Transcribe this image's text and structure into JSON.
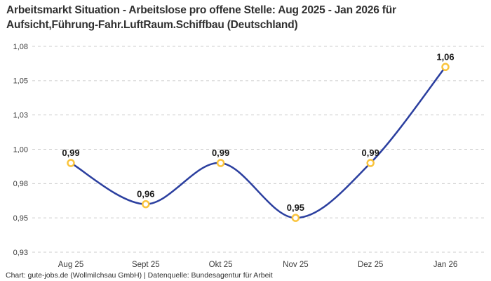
{
  "title": {
    "line1": "Arbeitsmarkt Situation - Arbeitslose pro offene Stelle: Aug 2025 - Jan 2026 für",
    "line2": "Aufsicht,Führung-Fahr.LuftRaum.Schiffbau (Deutschland)"
  },
  "footer": "Chart: gute-jobs.de (Wollmilchsau GmbH) | Datenquelle: Bundesagentur für Arbeit",
  "chart_data": {
    "type": "line",
    "title": "Arbeitsmarkt Situation - Arbeitslose pro offene Stelle: Aug 2025 - Jan 2026 für Aufsicht,Führung-Fahr.LuftRaum.Schiffbau (Deutschland)",
    "categories": [
      "Aug 25",
      "Sept 25",
      "Okt 25",
      "Nov 25",
      "Dez 25",
      "Jan 26"
    ],
    "values": [
      0.99,
      0.96,
      0.99,
      0.95,
      0.99,
      1.06
    ],
    "value_labels": [
      "0,99",
      "0,96",
      "0,99",
      "0,95",
      "0,99",
      "1,06"
    ],
    "xlabel": "",
    "ylabel": "",
    "ylim": [
      0.93,
      1.08
    ],
    "yticks_top_to_bottom": [
      "1,08",
      "1,05",
      "1,03",
      "1,00",
      "0,98",
      "0,95",
      "0,93"
    ],
    "grid": "horizontal-dashed",
    "legend": "none",
    "colors": {
      "line": "#2b3f9f",
      "marker_stroke": "#fac43c",
      "marker_fill": "#ffffff",
      "gridline": "#cccccc",
      "tick_text": "#3c3c3c",
      "value_label_text": "#1a1a1a",
      "title_text": "#303030",
      "background": "#ffffff"
    }
  }
}
